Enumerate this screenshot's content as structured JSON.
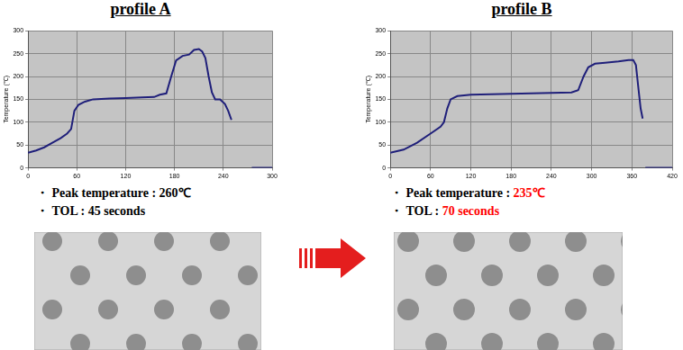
{
  "chart_data": [
    {
      "type": "line",
      "title": "profile A",
      "y_label": "Temperature (℃)",
      "x": [
        0,
        10,
        20,
        30,
        40,
        48,
        53,
        57,
        62,
        70,
        80,
        100,
        120,
        140,
        155,
        162,
        170,
        176,
        182,
        190,
        198,
        204,
        210,
        214,
        218,
        222,
        226,
        230,
        236,
        242,
        246,
        250,
        null,
        275,
        300
      ],
      "values": [
        33,
        38,
        45,
        55,
        65,
        75,
        85,
        125,
        138,
        145,
        150,
        152,
        153,
        154,
        155,
        160,
        163,
        200,
        235,
        245,
        248,
        258,
        260,
        255,
        240,
        200,
        165,
        150,
        150,
        140,
        125,
        105,
        null,
        0,
        0
      ],
      "color": "#1f1f7a",
      "xlim": [
        0,
        300
      ],
      "xticks": [
        0,
        60,
        120,
        180,
        240,
        300
      ],
      "ylim": [
        0,
        300
      ],
      "yticks": [
        0,
        50,
        100,
        150,
        200,
        250,
        300
      ],
      "grid": true,
      "annotations": [
        {
          "label": "・ Peak temperature : ",
          "value": "260℃",
          "value_color": "#000000"
        },
        {
          "label": "・ TOL : ",
          "value": "45 seconds",
          "value_color": "#000000"
        }
      ]
    },
    {
      "type": "line",
      "title": "profile B",
      "y_label": "Temperature (℃)",
      "x": [
        0,
        20,
        40,
        60,
        75,
        80,
        85,
        90,
        100,
        120,
        150,
        180,
        210,
        240,
        270,
        280,
        288,
        295,
        305,
        320,
        340,
        355,
        362,
        366,
        370,
        373,
        376,
        null,
        380,
        420
      ],
      "values": [
        33,
        40,
        55,
        75,
        90,
        100,
        130,
        150,
        157,
        160,
        161,
        162,
        163,
        164,
        165,
        170,
        200,
        220,
        228,
        230,
        233,
        236,
        236,
        225,
        170,
        130,
        108,
        null,
        0,
        0
      ],
      "color": "#1f1f7a",
      "xlim": [
        0,
        420
      ],
      "xticks": [
        0,
        60,
        120,
        180,
        240,
        300,
        360,
        420
      ],
      "ylim": [
        0,
        300
      ],
      "yticks": [
        0,
        50,
        100,
        150,
        200,
        250,
        300
      ],
      "grid": true,
      "annotations": [
        {
          "label": "・ Peak temperature : ",
          "value": "235℃",
          "value_color": "#ff0000"
        },
        {
          "label": "・ TOL : ",
          "value": "70 seconds",
          "value_color": "#ff0000"
        }
      ]
    }
  ]
}
